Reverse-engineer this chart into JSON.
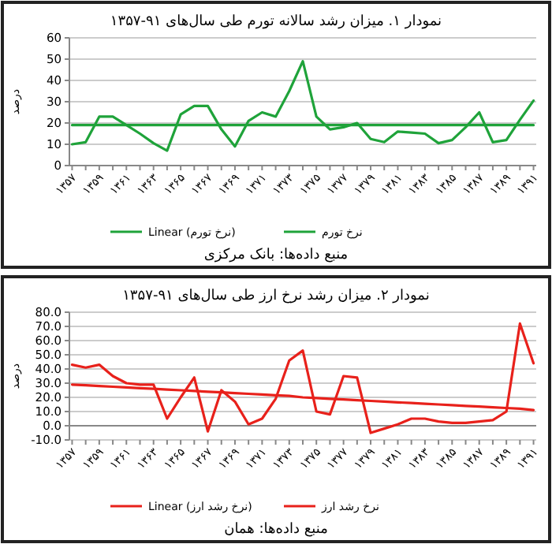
{
  "chart_data": [
    {
      "type": "line",
      "title": "نمودار ۱. میزان رشد سالانه تورم طی سال‌های ۹۱-۱۳۵۷",
      "ylabel": "درصد",
      "categories": [
        "۱۳۵۷",
        null,
        "۱۳۵۹",
        null,
        "۱۳۶۱",
        null,
        "۱۳۶۳",
        null,
        "۱۳۶۵",
        null,
        "۱۳۶۷",
        null,
        "۱۳۶۹",
        null,
        "۱۳۷۱",
        null,
        "۱۳۷۳",
        null,
        "۱۳۷۵",
        null,
        "۱۳۷۷",
        null,
        "۱۳۷۹",
        null,
        "۱۳۸۱",
        null,
        "۱۳۸۳",
        null,
        "۱۳۸۵",
        null,
        "۱۳۸۷",
        null,
        "۱۳۸۹",
        null,
        "۱۳۹۱"
      ],
      "series": [
        {
          "name": "نرخ تورم",
          "color": "#1fa33a",
          "values": [
            10,
            11,
            23,
            23,
            19,
            15,
            10.5,
            7,
            24,
            28,
            28,
            17,
            9,
            21,
            25,
            23,
            35,
            49,
            23,
            17,
            18,
            20,
            12.5,
            11,
            16,
            15.5,
            15,
            10.5,
            12,
            18,
            25,
            11,
            12,
            21.5,
            30.5
          ]
        },
        {
          "name": "Linear (نرخ تورم)",
          "color": "#1fa33a",
          "values": [
            19,
            19,
            19,
            19,
            19,
            19,
            19,
            19,
            19,
            19,
            19,
            19,
            19,
            19,
            19,
            19,
            19,
            19,
            19,
            19,
            19,
            19,
            19,
            19,
            19,
            19,
            19,
            19,
            19,
            19,
            19,
            19,
            19,
            19,
            19
          ]
        }
      ],
      "ylim": [
        0,
        60
      ],
      "yticks": [
        0,
        10,
        20,
        30,
        40,
        50,
        60
      ],
      "grid": "y",
      "legend": "bottom",
      "marker": "none",
      "line_style": "solid",
      "annotations": [
        "منبع داده‌ها: بانک مرکزی"
      ]
    },
    {
      "type": "line",
      "title": "نمودار ۲. میزان رشد نرخ ارز طی سال‌های ۹۱-۱۳۵۷",
      "ylabel": "درصد",
      "categories": [
        "۱۳۵۷",
        null,
        "۱۳۵۹",
        null,
        "۱۳۶۱",
        null,
        "۱۳۶۳",
        null,
        "۱۳۶۵",
        null,
        "۱۳۶۷",
        null,
        "۱۳۶۹",
        null,
        "۱۳۷۱",
        null,
        "۱۳۷۳",
        null,
        "۱۳۷۵",
        null,
        "۱۳۷۷",
        null,
        "۱۳۷۹",
        null,
        "۱۳۸۱",
        null,
        "۱۳۸۳",
        null,
        "۱۳۸۵",
        null,
        "۱۳۸۷",
        null,
        "۱۳۸۹",
        null,
        "۱۳۹۱"
      ],
      "series": [
        {
          "name": "نرخ رشد ارز",
          "color": "#e8211b",
          "values": [
            43,
            41,
            43,
            35,
            30,
            29,
            29,
            5,
            20,
            34,
            -4,
            25,
            17,
            1,
            5,
            19,
            46,
            53,
            10,
            8,
            35,
            34,
            -5,
            -2,
            1,
            5,
            5,
            3,
            2,
            2,
            3,
            4,
            10,
            72,
            44
          ]
        },
        {
          "name": "Linear (نرخ رشد ارز)",
          "color": "#e8211b",
          "values": [
            29,
            28.5,
            28,
            27.5,
            27,
            26.5,
            26,
            25.5,
            25,
            24.5,
            24,
            23.5,
            23,
            22.5,
            22,
            21.5,
            21,
            20,
            19.5,
            19,
            18.5,
            18,
            17.5,
            17,
            16.5,
            16,
            15.5,
            15,
            14.5,
            14,
            13.5,
            13,
            12.5,
            12,
            11
          ]
        }
      ],
      "ylim": [
        -10,
        80
      ],
      "yticks": [
        {
          "value": -10,
          "label": "-10.0"
        },
        {
          "value": 0,
          "label": "0.0"
        },
        {
          "value": 10,
          "label": "10.0"
        },
        {
          "value": 20,
          "label": "20.0"
        },
        {
          "value": 30,
          "label": "30.0"
        },
        {
          "value": 40,
          "label": "40.0"
        },
        {
          "value": 50,
          "label": "50.0"
        },
        {
          "value": 60,
          "label": "60.0"
        },
        {
          "value": 70,
          "label": "70.0"
        },
        {
          "value": 80,
          "label": "80.0"
        }
      ],
      "grid": "y",
      "legend": "bottom",
      "marker": "none",
      "line_style": "solid",
      "annotations": [
        "منبع داده‌ها: همان"
      ]
    }
  ]
}
